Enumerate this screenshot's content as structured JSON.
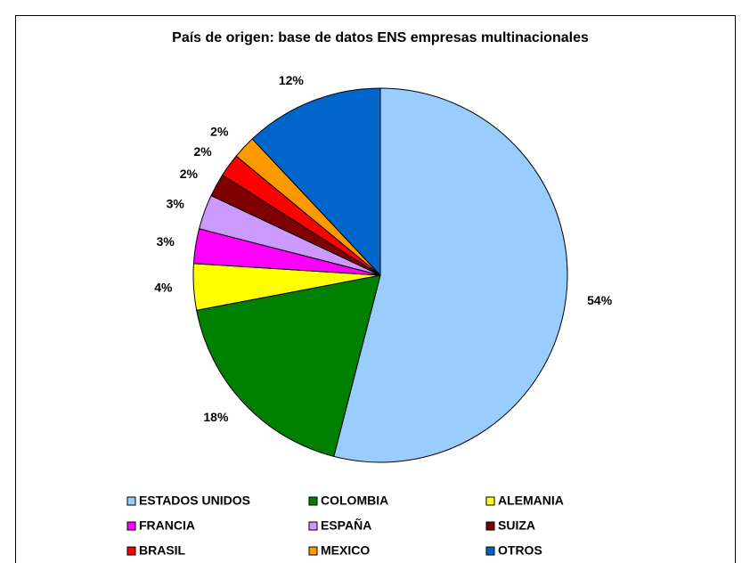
{
  "chart_data": {
    "type": "pie",
    "title": "País de origen: base de datos ENS empresas  multinacionales",
    "categories": [
      "ESTADOS UNIDOS",
      "COLOMBIA",
      "ALEMANIA",
      "FRANCIA",
      "ESPAÑA",
      "SUIZA",
      "BRASIL",
      "MEXICO",
      "OTROS"
    ],
    "values": [
      54,
      18,
      4,
      3,
      3,
      2,
      2,
      2,
      12
    ],
    "value_labels": [
      "54%",
      "18%",
      "4%",
      "3%",
      "3%",
      "2%",
      "2%",
      "2%",
      "12%"
    ],
    "colors": [
      "#99ccff",
      "#008000",
      "#ffff00",
      "#ff00ff",
      "#cc99ff",
      "#800000",
      "#ff0000",
      "#ff9900",
      "#0066cc"
    ],
    "legend": "bottom"
  }
}
